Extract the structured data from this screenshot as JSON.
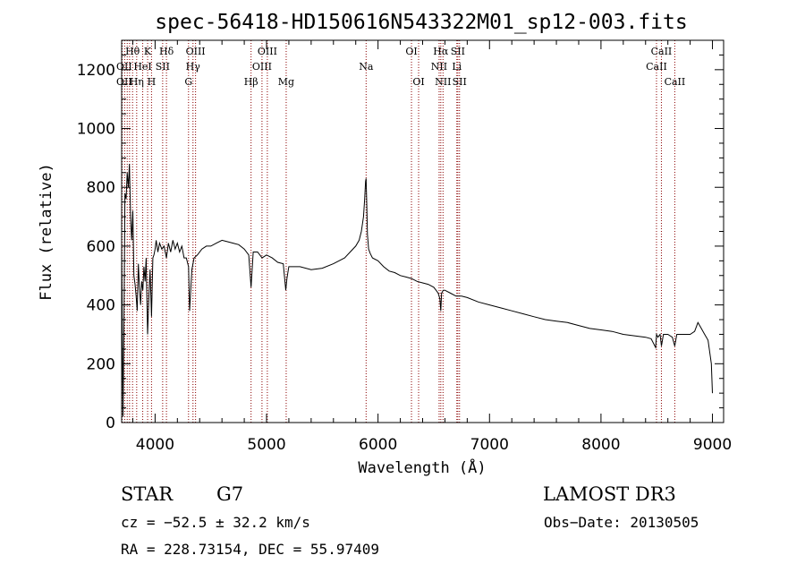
{
  "chart_data": {
    "type": "line",
    "title": "spec-56418-HD150616N543322M01_sp12-003.fits",
    "xlabel": "Wavelength (Å)",
    "ylabel": "Flux (relative)",
    "xlim": [
      3700,
      9100
    ],
    "ylim": [
      0,
      1300
    ],
    "xticks": [
      {
        "value": 4000,
        "label": "4000"
      },
      {
        "value": 5000,
        "label": "5000"
      },
      {
        "value": 6000,
        "label": "6000"
      },
      {
        "value": 7000,
        "label": "7000"
      },
      {
        "value": 8000,
        "label": "8000"
      },
      {
        "value": 9000,
        "label": "9000"
      }
    ],
    "yticks": [
      {
        "value": 0,
        "label": "0"
      },
      {
        "value": 200,
        "label": "200"
      },
      {
        "value": 400,
        "label": "400"
      },
      {
        "value": 600,
        "label": "600"
      },
      {
        "value": 800,
        "label": "800"
      },
      {
        "value": 1000,
        "label": "1000"
      },
      {
        "value": 1200,
        "label": "1200"
      }
    ],
    "series": [
      {
        "name": "flux",
        "x": [
          3700,
          3712,
          3720,
          3730,
          3740,
          3750,
          3760,
          3770,
          3780,
          3790,
          3800,
          3810,
          3820,
          3830,
          3840,
          3850,
          3860,
          3870,
          3880,
          3890,
          3900,
          3910,
          3920,
          3933,
          3945,
          3955,
          3968,
          3980,
          3990,
          4000,
          4010,
          4025,
          4040,
          4060,
          4080,
          4102,
          4120,
          4140,
          4160,
          4180,
          4200,
          4220,
          4240,
          4260,
          4280,
          4300,
          4310,
          4330,
          4350,
          4380,
          4420,
          4460,
          4500,
          4550,
          4600,
          4650,
          4700,
          4750,
          4800,
          4840,
          4861,
          4880,
          4920,
          4960,
          5000,
          5050,
          5100,
          5150,
          5172,
          5183,
          5200,
          5250,
          5300,
          5400,
          5500,
          5600,
          5700,
          5750,
          5800,
          5830,
          5850,
          5870,
          5880,
          5888,
          5893,
          5898,
          5905,
          5915,
          5930,
          5950,
          6000,
          6050,
          6100,
          6150,
          6200,
          6250,
          6300,
          6350,
          6400,
          6450,
          6500,
          6520,
          6540,
          6555,
          6563,
          6570,
          6585,
          6600,
          6650,
          6700,
          6750,
          6800,
          6900,
          7000,
          7100,
          7200,
          7300,
          7400,
          7500,
          7600,
          7700,
          7800,
          7900,
          8000,
          8100,
          8200,
          8300,
          8400,
          8450,
          8490,
          8498,
          8510,
          8530,
          8542,
          8560,
          8600,
          8640,
          8662,
          8680,
          8720,
          8760,
          8800,
          8840,
          8870,
          8900,
          8930,
          8960,
          8990,
          9000
        ],
        "values": [
          600,
          20,
          300,
          780,
          760,
          850,
          800,
          880,
          700,
          620,
          720,
          500,
          470,
          430,
          380,
          540,
          460,
          400,
          480,
          450,
          530,
          480,
          560,
          300,
          430,
          520,
          360,
          560,
          570,
          590,
          620,
          580,
          610,
          590,
          600,
          560,
          610,
          580,
          620,
          590,
          610,
          580,
          600,
          560,
          560,
          530,
          380,
          520,
          560,
          570,
          590,
          600,
          600,
          610,
          620,
          615,
          610,
          605,
          590,
          570,
          460,
          580,
          580,
          560,
          570,
          560,
          545,
          540,
          450,
          490,
          530,
          530,
          530,
          520,
          525,
          540,
          560,
          580,
          600,
          620,
          650,
          700,
          760,
          820,
          830,
          760,
          640,
          590,
          575,
          560,
          550,
          530,
          515,
          510,
          500,
          495,
          490,
          480,
          475,
          470,
          460,
          450,
          440,
          420,
          380,
          440,
          450,
          450,
          440,
          430,
          430,
          425,
          410,
          400,
          390,
          380,
          370,
          360,
          350,
          345,
          340,
          330,
          320,
          315,
          310,
          300,
          295,
          290,
          285,
          255,
          300,
          290,
          300,
          260,
          300,
          300,
          290,
          260,
          300,
          300,
          300,
          300,
          310,
          340,
          320,
          300,
          280,
          200,
          100
        ]
      }
    ],
    "lines": [
      {
        "wave": 3705,
        "label": "",
        "row": 0
      },
      {
        "wave": 3727,
        "label": "",
        "row": 0
      },
      {
        "wave": 3750,
        "label": "",
        "row": 0
      },
      {
        "wave": 3771,
        "label": "",
        "row": 0
      },
      {
        "wave": 3798,
        "label": "Hθ",
        "row": 0
      },
      {
        "wave": 3835,
        "label": "Hη",
        "row": 2
      },
      {
        "wave": 3889,
        "label": "HeI",
        "row": 1
      },
      {
        "wave": 3933,
        "label": "K",
        "row": 0
      },
      {
        "wave": 3968,
        "label": "H",
        "row": 2
      },
      {
        "wave": 4068,
        "label": "SII",
        "row": 1
      },
      {
        "wave": 4102,
        "label": "Hδ",
        "row": 0
      },
      {
        "wave": 4300,
        "label": "G",
        "row": 2
      },
      {
        "wave": 4340,
        "label": "Hγ",
        "row": 1
      },
      {
        "wave": 4363,
        "label": "OIII",
        "row": 0
      },
      {
        "wave": 4861,
        "label": "Hβ",
        "row": 2
      },
      {
        "wave": 4959,
        "label": "OIII",
        "row": 1
      },
      {
        "wave": 5007,
        "label": "OIII",
        "row": 0
      },
      {
        "wave": 5176,
        "label": "Mg",
        "row": 2
      },
      {
        "wave": 5893,
        "label": "Na",
        "row": 1
      },
      {
        "wave": 6300,
        "label": "OI",
        "row": 0
      },
      {
        "wave": 6364,
        "label": "OI",
        "row": 2
      },
      {
        "wave": 6548,
        "label": "NII",
        "row": 1
      },
      {
        "wave": 6563,
        "label": "Hα",
        "row": 0
      },
      {
        "wave": 6583,
        "label": "NII",
        "row": 2
      },
      {
        "wave": 6707,
        "label": "Li",
        "row": 1
      },
      {
        "wave": 6716,
        "label": "SII",
        "row": 0
      },
      {
        "wave": 6731,
        "label": "SII",
        "row": 2
      },
      {
        "wave": 8498,
        "label": "CaII",
        "row": 1
      },
      {
        "wave": 8542,
        "label": "CaII",
        "row": 0
      },
      {
        "wave": 8662,
        "label": "CaII",
        "row": 2
      }
    ],
    "overlaps": [
      {
        "label": "OII",
        "row": 1
      },
      {
        "label": "OII",
        "row": 2
      }
    ]
  },
  "info": {
    "object_class": "STAR",
    "subclass": "G7",
    "survey": "LAMOST DR3",
    "cz": "cz = −52.5 ± 32.2 km/s",
    "obs_date": "Obs−Date: 20130505",
    "coords": "RA = 228.73154, DEC =  55.97409"
  }
}
